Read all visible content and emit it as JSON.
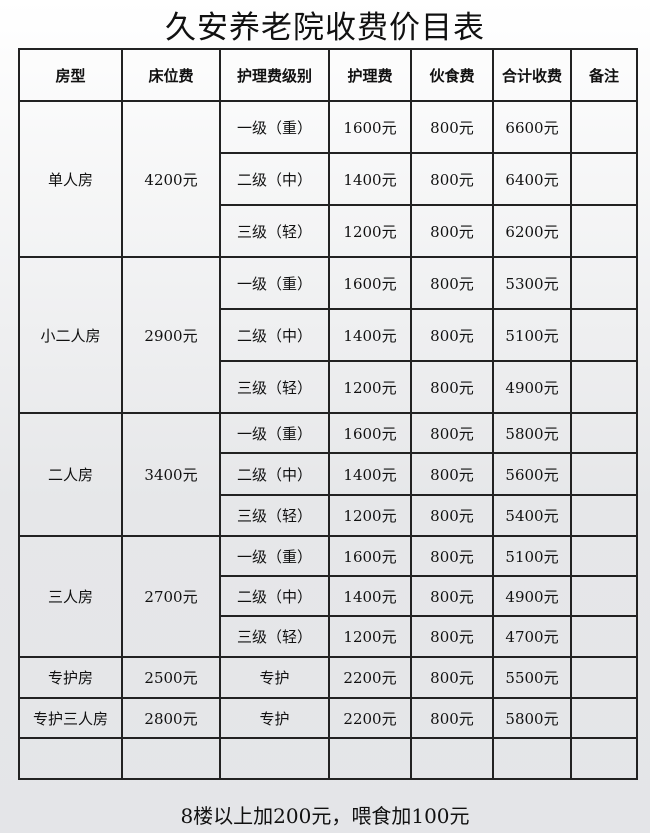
{
  "title": "久安养老院收费价目表",
  "headers": [
    "房型",
    "床位费",
    "护理费级别",
    "护理费",
    "伙食费",
    "合计收费",
    "备注"
  ],
  "groups": [
    {
      "room": "单人房",
      "bed": "4200元",
      "rows": [
        {
          "level": "一级（重）",
          "care": "1600元",
          "food": "800元",
          "total": "6600元"
        },
        {
          "level": "二级（中）",
          "care": "1400元",
          "food": "800元",
          "total": "6400元"
        },
        {
          "level": "三级（轻）",
          "care": "1200元",
          "food": "800元",
          "total": "6200元"
        }
      ]
    },
    {
      "room": "小二人房",
      "bed": "2900元",
      "rows": [
        {
          "level": "一级（重）",
          "care": "1600元",
          "food": "800元",
          "total": "5300元"
        },
        {
          "level": "二级（中）",
          "care": "1400元",
          "food": "800元",
          "total": "5100元"
        },
        {
          "level": "三级（轻）",
          "care": "1200元",
          "food": "800元",
          "total": "4900元"
        }
      ]
    },
    {
      "room": "二人房",
      "bed": "3400元",
      "rows": [
        {
          "level": "一级（重）",
          "care": "1600元",
          "food": "800元",
          "total": "5800元"
        },
        {
          "level": "二级（中）",
          "care": "1400元",
          "food": "800元",
          "total": "5600元"
        },
        {
          "level": "三级（轻）",
          "care": "1200元",
          "food": "800元",
          "total": "5400元"
        }
      ]
    },
    {
      "room": "三人房",
      "bed": "2700元",
      "rows": [
        {
          "level": "一级（重）",
          "care": "1600元",
          "food": "800元",
          "total": "5100元"
        },
        {
          "level": "二级（中）",
          "care": "1400元",
          "food": "800元",
          "total": "4900元"
        },
        {
          "level": "三级（轻）",
          "care": "1200元",
          "food": "800元",
          "total": "4700元"
        }
      ]
    },
    {
      "room": "专护房",
      "bed": "2500元",
      "rows": [
        {
          "level": "专护",
          "care": "2200元",
          "food": "800元",
          "total": "5500元"
        }
      ]
    },
    {
      "room": "专护三人房",
      "bed": "2800元",
      "rows": [
        {
          "level": "专护",
          "care": "2200元",
          "food": "800元",
          "total": "5800元"
        }
      ]
    }
  ],
  "footer": "8楼以上加200元，喂食加100元"
}
